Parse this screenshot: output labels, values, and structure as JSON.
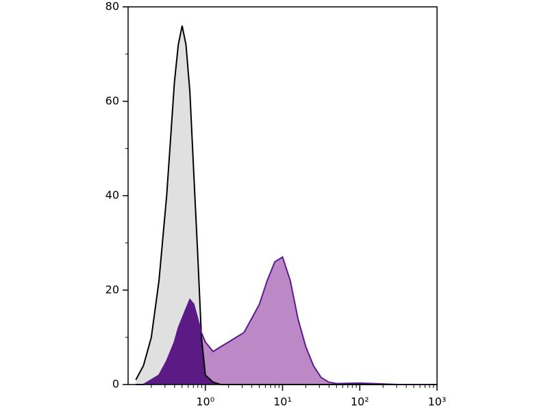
{
  "chart_data": {
    "type": "area",
    "xscale": "log",
    "xlim": [
      0.1,
      1000
    ],
    "ylim": [
      0,
      80
    ],
    "xticks": [
      {
        "value": 1,
        "label": "10⁰"
      },
      {
        "value": 10,
        "label": "10¹"
      },
      {
        "value": 100,
        "label": "10²"
      },
      {
        "value": 1000,
        "label": "10³"
      }
    ],
    "yticks": [
      0,
      20,
      40,
      60,
      80
    ],
    "x": [
      0.126,
      0.158,
      0.2,
      0.251,
      0.316,
      0.355,
      0.398,
      0.447,
      0.501,
      0.562,
      0.631,
      0.708,
      0.794,
      0.891,
      1,
      1.26,
      1.58,
      2,
      2.51,
      3.16,
      3.98,
      5.01,
      6.31,
      7.94,
      10,
      12.6,
      15.8,
      20,
      25.1,
      31.6,
      39.8,
      50.1,
      100,
      316,
      1000
    ],
    "series": [
      {
        "color": "#e0e0e0",
        "line_color": "#000000",
        "values": [
          1,
          4,
          10,
          22,
          40,
          52,
          64,
          72,
          76,
          72,
          62,
          45,
          28,
          10,
          2,
          0.5,
          0,
          0,
          0,
          0,
          0,
          0,
          0,
          0,
          0,
          0,
          0,
          0,
          0,
          0,
          0,
          0,
          0,
          0,
          0
        ]
      },
      {
        "color": "#bc88c6",
        "line_color": "#5a1a8c",
        "overlap_color": "#5c1a84",
        "values": [
          0,
          0,
          1,
          2,
          5,
          7,
          9,
          12,
          14,
          16,
          18,
          17,
          14,
          11,
          9,
          7,
          8,
          9,
          10,
          11,
          14,
          17,
          22,
          26,
          27,
          22,
          14,
          8,
          4,
          1.5,
          0.5,
          0.2,
          0.3,
          0,
          0
        ]
      }
    ]
  }
}
